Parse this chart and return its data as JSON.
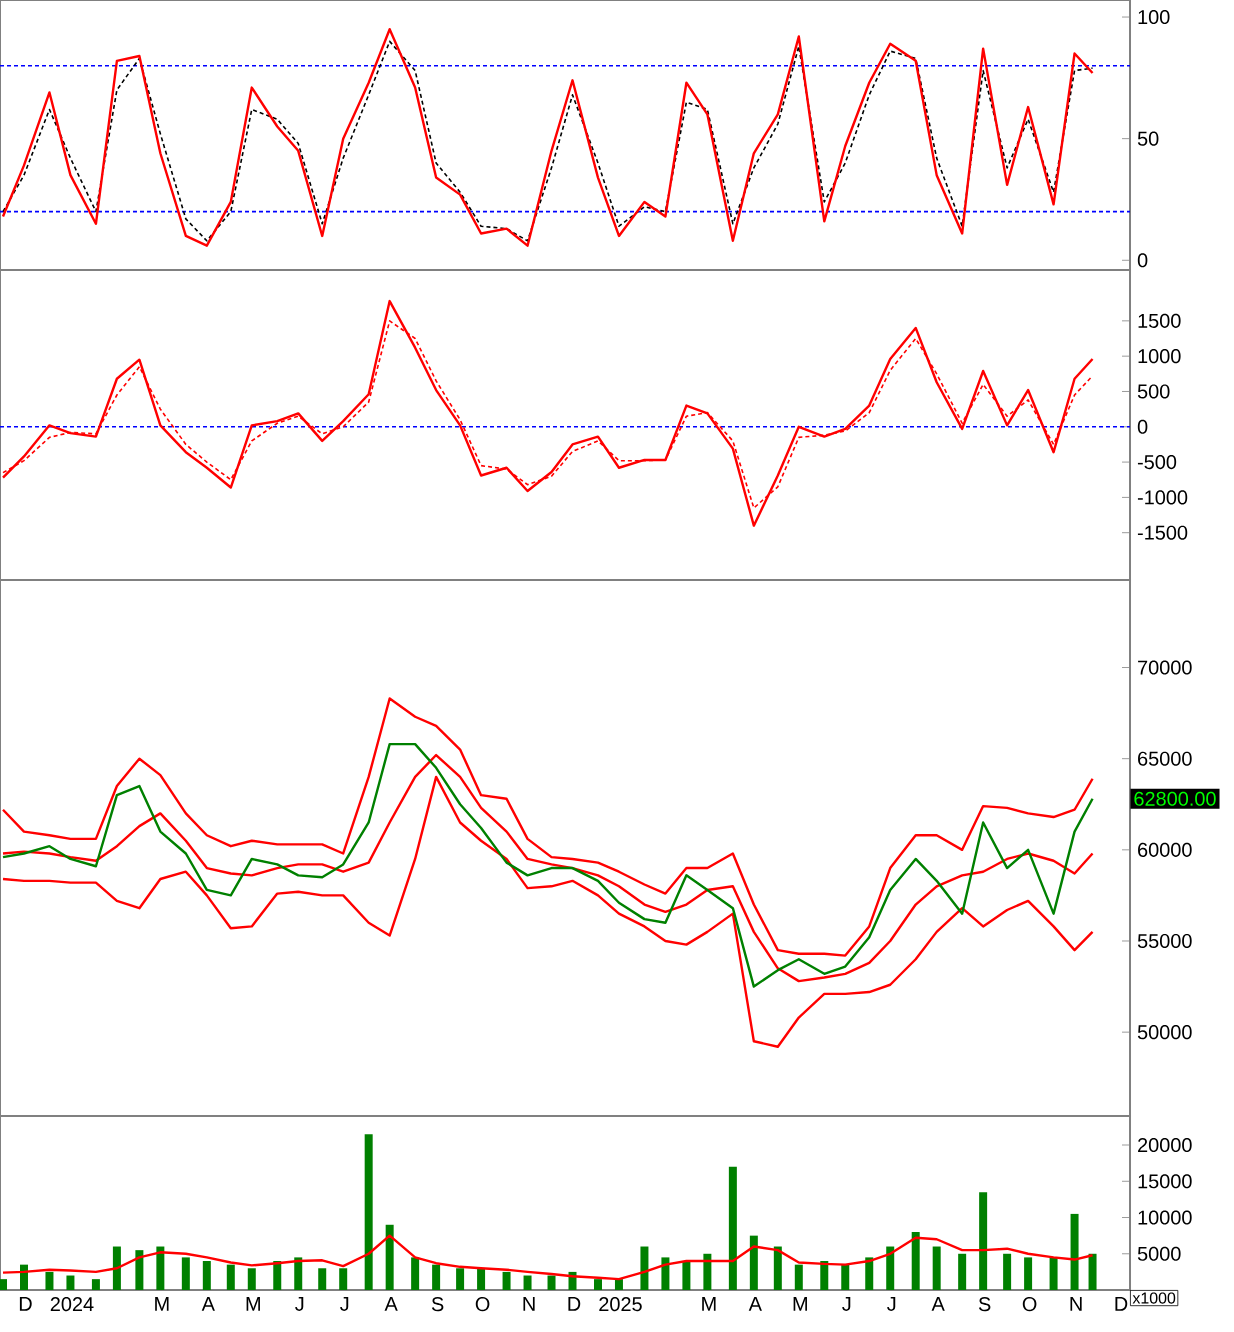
{
  "chart_data": [
    {
      "type": "line",
      "x": [
        "2023-12-01",
        "2023-12-15",
        "2024-01-01",
        "2024-01-15",
        "2024-02-01",
        "2024-02-15",
        "2024-03-01",
        "2024-03-15",
        "2024-04-01",
        "2024-04-15",
        "2024-05-01",
        "2024-05-15",
        "2024-06-01",
        "2024-06-15",
        "2024-07-01",
        "2024-07-15",
        "2024-08-01",
        "2024-08-15",
        "2024-09-01",
        "2024-09-15",
        "2024-10-01",
        "2024-10-15",
        "2024-11-01",
        "2024-11-15",
        "2024-12-01",
        "2024-12-15",
        "2025-01-01",
        "2025-01-15",
        "2025-02-01",
        "2025-02-15",
        "2025-03-01",
        "2025-03-15",
        "2025-04-01",
        "2025-04-15",
        "2025-05-01",
        "2025-05-15",
        "2025-06-01",
        "2025-06-15",
        "2025-07-01",
        "2025-07-15",
        "2025-08-01",
        "2025-08-15",
        "2025-09-01",
        "2025-09-15",
        "2025-10-01",
        "2025-10-15",
        "2025-11-01",
        "2025-11-15",
        "2025-11-27"
      ],
      "series": [
        {
          "color": "#000000",
          "line_style": "dashed",
          "values": [
            20,
            35,
            62,
            42,
            20,
            70,
            83,
            52,
            17,
            8,
            20,
            62,
            58,
            48,
            15,
            42,
            68,
            90,
            78,
            40,
            28,
            14,
            13,
            8,
            38,
            68,
            40,
            14,
            22,
            20,
            65,
            62,
            15,
            38,
            56,
            88,
            24,
            40,
            68,
            86,
            83,
            42,
            14,
            78,
            38,
            58,
            28,
            78,
            79
          ]
        },
        {
          "color": "#ff0000",
          "values": [
            18,
            39,
            69,
            35,
            15,
            82,
            84,
            44,
            10,
            6,
            24,
            71,
            55,
            45,
            10,
            50,
            73,
            95,
            71,
            34,
            27,
            11,
            13,
            6,
            45,
            74,
            34,
            10,
            24,
            18,
            73,
            60,
            8,
            44,
            60,
            92,
            16,
            47,
            73,
            89,
            82,
            35,
            11,
            87,
            31,
            63,
            23,
            85,
            77
          ]
        }
      ],
      "xlim": [
        "2023-11-29",
        "2025-12-22"
      ],
      "ylim": [
        -4,
        107
      ],
      "yticks": [
        0,
        50,
        100
      ],
      "tick_labels": "y",
      "ref_lines": [
        {
          "axis": "y",
          "value": 80,
          "color": "#0000ff",
          "line_style": "dashed"
        },
        {
          "axis": "y",
          "value": 20,
          "color": "#0000ff",
          "line_style": "dashed"
        }
      ]
    },
    {
      "type": "line",
      "x": [
        "2023-12-01",
        "2023-12-15",
        "2024-01-01",
        "2024-01-15",
        "2024-02-01",
        "2024-02-15",
        "2024-03-01",
        "2024-03-15",
        "2024-04-01",
        "2024-04-15",
        "2024-05-01",
        "2024-05-15",
        "2024-06-01",
        "2024-06-15",
        "2024-07-01",
        "2024-07-15",
        "2024-08-01",
        "2024-08-15",
        "2024-09-01",
        "2024-09-15",
        "2024-10-01",
        "2024-10-15",
        "2024-11-01",
        "2024-11-15",
        "2024-12-01",
        "2024-12-15",
        "2025-01-01",
        "2025-01-15",
        "2025-02-01",
        "2025-02-15",
        "2025-03-01",
        "2025-03-15",
        "2025-04-01",
        "2025-04-15",
        "2025-05-01",
        "2025-05-15",
        "2025-06-01",
        "2025-06-15",
        "2025-07-01",
        "2025-07-15",
        "2025-08-01",
        "2025-08-15",
        "2025-09-01",
        "2025-09-15",
        "2025-10-01",
        "2025-10-15",
        "2025-11-01",
        "2025-11-15",
        "2025-11-27"
      ],
      "series": [
        {
          "color": "#ff0000",
          "line_style": "dashed",
          "values": [
            -650,
            -480,
            -150,
            -80,
            -100,
            450,
            850,
            250,
            -250,
            -500,
            -750,
            -200,
            50,
            150,
            -100,
            0,
            350,
            1500,
            1250,
            650,
            100,
            -550,
            -600,
            -820,
            -700,
            -350,
            -200,
            -480,
            -480,
            -470,
            150,
            200,
            -200,
            -1150,
            -850,
            -150,
            -120,
            -60,
            200,
            800,
            1250,
            750,
            50,
            600,
            150,
            380,
            -250,
            450,
            720
          ]
        },
        {
          "color": "#ff0000",
          "values": [
            -720,
            -420,
            20,
            -90,
            -140,
            680,
            950,
            20,
            -360,
            -580,
            -860,
            20,
            80,
            190,
            -200,
            80,
            460,
            1780,
            1120,
            520,
            20,
            -690,
            -580,
            -910,
            -640,
            -250,
            -140,
            -580,
            -470,
            -470,
            300,
            190,
            -310,
            -1400,
            -690,
            0,
            -140,
            -30,
            300,
            960,
            1400,
            630,
            -30,
            790,
            20,
            520,
            -360,
            680,
            960
          ]
        }
      ],
      "xlim": [
        "2023-11-29",
        "2025-12-22"
      ],
      "ylim": [
        -2170,
        2220
      ],
      "yticks": [
        -1500,
        -1000,
        -500,
        0,
        500,
        1000,
        1500
      ],
      "tick_labels": "y",
      "ref_lines": [
        {
          "axis": "y",
          "value": 0,
          "color": "#0000ff",
          "line_style": "dashed"
        }
      ]
    },
    {
      "type": "line",
      "x": [
        "2023-12-01",
        "2023-12-15",
        "2024-01-01",
        "2024-01-15",
        "2024-02-01",
        "2024-02-15",
        "2024-03-01",
        "2024-03-15",
        "2024-04-01",
        "2024-04-15",
        "2024-05-01",
        "2024-05-15",
        "2024-06-01",
        "2024-06-15",
        "2024-07-01",
        "2024-07-15",
        "2024-08-01",
        "2024-08-15",
        "2024-09-01",
        "2024-09-15",
        "2024-10-01",
        "2024-10-15",
        "2024-11-01",
        "2024-11-15",
        "2024-12-01",
        "2024-12-15",
        "2025-01-01",
        "2025-01-15",
        "2025-02-01",
        "2025-02-15",
        "2025-03-01",
        "2025-03-15",
        "2025-04-01",
        "2025-04-15",
        "2025-05-01",
        "2025-05-15",
        "2025-06-01",
        "2025-06-15",
        "2025-07-01",
        "2025-07-15",
        "2025-08-01",
        "2025-08-15",
        "2025-09-01",
        "2025-09-15",
        "2025-10-01",
        "2025-10-15",
        "2025-11-01",
        "2025-11-15",
        "2025-11-27"
      ],
      "series": [
        {
          "color": "#ff0000",
          "values": [
            62200,
            61000,
            60800,
            60600,
            60600,
            63500,
            65000,
            64100,
            62000,
            60800,
            60200,
            60500,
            60300,
            60300,
            60300,
            59800,
            64000,
            68300,
            67300,
            66800,
            65500,
            63000,
            62800,
            60600,
            59600,
            59500,
            59300,
            58800,
            58100,
            57600,
            59000,
            59000,
            59800,
            57000,
            54500,
            54300,
            54300,
            54200,
            55800,
            59000,
            60800,
            60800,
            60000,
            62400,
            62300,
            62000,
            61800,
            62200,
            63900
          ]
        },
        {
          "color": "#ff0000",
          "values": [
            59800,
            59900,
            59800,
            59600,
            59400,
            60200,
            61300,
            62000,
            60500,
            59000,
            58700,
            58600,
            59000,
            59200,
            59200,
            58800,
            59300,
            61500,
            64000,
            65200,
            64000,
            62300,
            61000,
            59500,
            59200,
            59000,
            58600,
            58000,
            57000,
            56600,
            57000,
            57800,
            58000,
            55500,
            53500,
            52800,
            53000,
            53200,
            53800,
            55000,
            57000,
            58000,
            58600,
            58800,
            59500,
            59800,
            59400,
            58700,
            59800
          ]
        },
        {
          "color": "#ff0000",
          "values": [
            58400,
            58300,
            58300,
            58200,
            58200,
            57200,
            56800,
            58400,
            58800,
            57500,
            55700,
            55800,
            57600,
            57700,
            57500,
            57500,
            56000,
            55300,
            59500,
            64000,
            61500,
            60500,
            59500,
            57900,
            58000,
            58300,
            57500,
            56500,
            55800,
            55000,
            54800,
            55500,
            56500,
            49500,
            49200,
            50800,
            52100,
            52100,
            52200,
            52600,
            54000,
            55500,
            56800,
            55800,
            56700,
            57200,
            55800,
            54500,
            55500
          ]
        },
        {
          "color": "#008000",
          "values": [
            59600,
            59800,
            60200,
            59500,
            59100,
            63000,
            63500,
            61000,
            59800,
            57800,
            57500,
            59500,
            59200,
            58600,
            58500,
            59200,
            61500,
            65800,
            65800,
            64500,
            62500,
            61200,
            59300,
            58600,
            59000,
            59000,
            58300,
            57100,
            56200,
            56000,
            58600,
            57800,
            56800,
            52500,
            53400,
            54000,
            53200,
            53600,
            55200,
            57800,
            59500,
            58300,
            56500,
            61500,
            59000,
            60000,
            56500,
            61000,
            62800
          ]
        }
      ],
      "xlim": [
        "2023-11-29",
        "2025-12-22"
      ],
      "ylim": [
        45400,
        74800
      ],
      "yticks": [
        50000,
        55000,
        60000,
        65000,
        70000
      ],
      "tick_labels": "y",
      "annotations": [
        {
          "text": "62800.00",
          "x": "2025-11-27",
          "y": 62800
        }
      ]
    },
    {
      "type": "bar",
      "x": [
        "2023-12-01",
        "2023-12-15",
        "2024-01-01",
        "2024-01-15",
        "2024-02-01",
        "2024-02-15",
        "2024-03-01",
        "2024-03-15",
        "2024-04-01",
        "2024-04-15",
        "2024-05-01",
        "2024-05-15",
        "2024-06-01",
        "2024-06-15",
        "2024-07-01",
        "2024-07-15",
        "2024-08-01",
        "2024-08-15",
        "2024-09-01",
        "2024-09-15",
        "2024-10-01",
        "2024-10-15",
        "2024-11-01",
        "2024-11-15",
        "2024-12-01",
        "2024-12-15",
        "2025-01-01",
        "2025-01-15",
        "2025-02-01",
        "2025-02-15",
        "2025-03-01",
        "2025-03-15",
        "2025-04-01",
        "2025-04-15",
        "2025-05-01",
        "2025-05-15",
        "2025-06-01",
        "2025-06-15",
        "2025-07-01",
        "2025-07-15",
        "2025-08-01",
        "2025-08-15",
        "2025-09-01",
        "2025-09-15",
        "2025-10-01",
        "2025-10-15",
        "2025-11-01",
        "2025-11-15",
        "2025-11-27"
      ],
      "series": [
        {
          "color": "#008000",
          "values": [
            1500,
            3500,
            2500,
            2000,
            1500,
            6000,
            5500,
            6000,
            4500,
            4000,
            3500,
            3000,
            4000,
            4500,
            3000,
            3000,
            21500,
            9000,
            4500,
            3500,
            3000,
            3000,
            2500,
            2000,
            2000,
            2500,
            1500,
            1500,
            6000,
            4500,
            4000,
            5000,
            17000,
            7500,
            6000,
            3500,
            4000,
            3500,
            4500,
            6000,
            8000,
            6000,
            5000,
            13500,
            5000,
            4500,
            4500,
            10500,
            5000
          ]
        },
        {
          "type": "line",
          "color": "#ff0000",
          "values": [
            2400,
            2500,
            2800,
            2700,
            2500,
            3000,
            4500,
            5200,
            5000,
            4500,
            3800,
            3400,
            3700,
            4000,
            4100,
            3300,
            5000,
            7500,
            4500,
            3700,
            3200,
            3000,
            2800,
            2500,
            2200,
            1900,
            1700,
            1500,
            2500,
            3500,
            4000,
            4000,
            4000,
            6000,
            5500,
            3800,
            3600,
            3500,
            4000,
            5000,
            7200,
            7000,
            5500,
            5500,
            5700,
            5000,
            4500,
            4200,
            4800
          ]
        }
      ],
      "xlim": [
        "2023-11-29",
        "2025-12-22"
      ],
      "ylim": [
        0,
        24000
      ],
      "yticks": [
        5000,
        10000,
        15000,
        20000
      ],
      "xticks": [
        {
          "value": "2023-12-16",
          "label": "D"
        },
        {
          "value": "2024-01-16",
          "label": "2024"
        },
        {
          "value": "2024-03-16",
          "label": "M"
        },
        {
          "value": "2024-04-16",
          "label": "A"
        },
        {
          "value": "2024-05-16",
          "label": "M"
        },
        {
          "value": "2024-06-16",
          "label": "J"
        },
        {
          "value": "2024-07-16",
          "label": "J"
        },
        {
          "value": "2024-08-16",
          "label": "A"
        },
        {
          "value": "2024-09-16",
          "label": "S"
        },
        {
          "value": "2024-10-16",
          "label": "O"
        },
        {
          "value": "2024-11-16",
          "label": "N"
        },
        {
          "value": "2024-12-16",
          "label": "D"
        },
        {
          "value": "2025-01-16",
          "label": "2025"
        },
        {
          "value": "2025-03-16",
          "label": "M"
        },
        {
          "value": "2025-04-16",
          "label": "A"
        },
        {
          "value": "2025-05-16",
          "label": "M"
        },
        {
          "value": "2025-06-16",
          "label": "J"
        },
        {
          "value": "2025-07-16",
          "label": "J"
        },
        {
          "value": "2025-08-16",
          "label": "A"
        },
        {
          "value": "2025-09-16",
          "label": "S"
        },
        {
          "value": "2025-10-16",
          "label": "O"
        },
        {
          "value": "2025-11-16",
          "label": "N"
        },
        {
          "value": "2025-12-16",
          "label": "D"
        }
      ],
      "annotations": [
        "x1000"
      ]
    }
  ]
}
